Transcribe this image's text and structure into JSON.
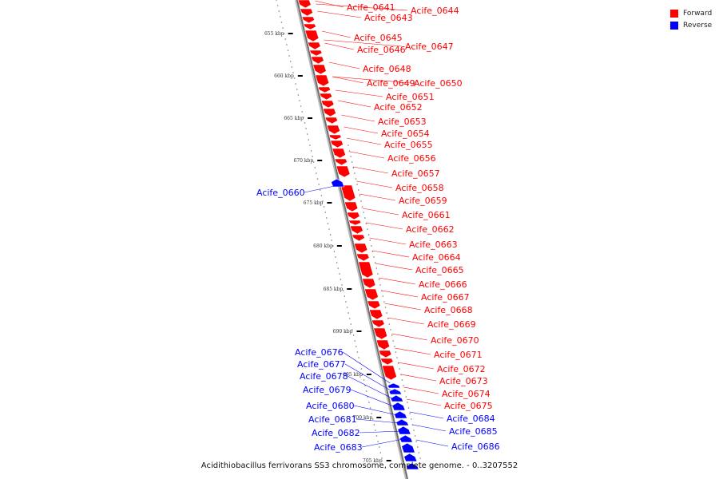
{
  "caption": "Acidithiobacillus ferrivorans SS3 chromosome, complete genome. - 0..3207552",
  "colors": {
    "forward": "#ff0000",
    "reverse": "#0000ff",
    "backbone": "#999999"
  },
  "legend": [
    {
      "label": "Forward",
      "strand": "forward"
    },
    {
      "label": "Reverse",
      "strand": "reverse"
    }
  ],
  "ticks": [
    "655 kbp",
    "660 kbp",
    "665 kbp",
    "670 kbp",
    "675 kbp",
    "680 kbp",
    "685 kbp",
    "690 kbp",
    "695 kbp",
    "700 kbp",
    "705 kbp"
  ],
  "genes": [
    {
      "label": "Acife_0641",
      "strand": "forward"
    },
    {
      "label": "Acife_0643",
      "strand": "forward"
    },
    {
      "label": "Acife_0644",
      "strand": "forward"
    },
    {
      "label": "Acife_0645",
      "strand": "forward"
    },
    {
      "label": "Acife_0646",
      "strand": "forward"
    },
    {
      "label": "Acife_0647",
      "strand": "forward"
    },
    {
      "label": "Acife_0648",
      "strand": "forward"
    },
    {
      "label": "Acife_0649",
      "strand": "forward"
    },
    {
      "label": "Acife_0650",
      "strand": "forward"
    },
    {
      "label": "Acife_0651",
      "strand": "forward"
    },
    {
      "label": "Acife_0652",
      "strand": "forward"
    },
    {
      "label": "Acife_0653",
      "strand": "forward"
    },
    {
      "label": "Acife_0654",
      "strand": "forward"
    },
    {
      "label": "Acife_0655",
      "strand": "forward"
    },
    {
      "label": "Acife_0656",
      "strand": "forward"
    },
    {
      "label": "Acife_0657",
      "strand": "forward"
    },
    {
      "label": "Acife_0658",
      "strand": "forward"
    },
    {
      "label": "Acife_0659",
      "strand": "forward"
    },
    {
      "label": "Acife_0660",
      "strand": "reverse"
    },
    {
      "label": "Acife_0661",
      "strand": "forward"
    },
    {
      "label": "Acife_0662",
      "strand": "forward"
    },
    {
      "label": "Acife_0663",
      "strand": "forward"
    },
    {
      "label": "Acife_0664",
      "strand": "forward"
    },
    {
      "label": "Acife_0665",
      "strand": "forward"
    },
    {
      "label": "Acife_0666",
      "strand": "forward"
    },
    {
      "label": "Acife_0667",
      "strand": "forward"
    },
    {
      "label": "Acife_0668",
      "strand": "forward"
    },
    {
      "label": "Acife_0669",
      "strand": "forward"
    },
    {
      "label": "Acife_0670",
      "strand": "forward"
    },
    {
      "label": "Acife_0671",
      "strand": "forward"
    },
    {
      "label": "Acife_0672",
      "strand": "forward"
    },
    {
      "label": "Acife_0673",
      "strand": "forward"
    },
    {
      "label": "Acife_0674",
      "strand": "forward"
    },
    {
      "label": "Acife_0675",
      "strand": "forward"
    },
    {
      "label": "Acife_0676",
      "strand": "reverse"
    },
    {
      "label": "Acife_0677",
      "strand": "reverse"
    },
    {
      "label": "Acife_0678",
      "strand": "reverse"
    },
    {
      "label": "Acife_0679",
      "strand": "reverse"
    },
    {
      "label": "Acife_0680",
      "strand": "reverse"
    },
    {
      "label": "Acife_0681",
      "strand": "reverse"
    },
    {
      "label": "Acife_0682",
      "strand": "reverse"
    },
    {
      "label": "Acife_0683",
      "strand": "reverse"
    },
    {
      "label": "Acife_0684",
      "strand": "reverse"
    },
    {
      "label": "Acife_0685",
      "strand": "reverse"
    },
    {
      "label": "Acife_0686",
      "strand": "reverse"
    }
  ]
}
